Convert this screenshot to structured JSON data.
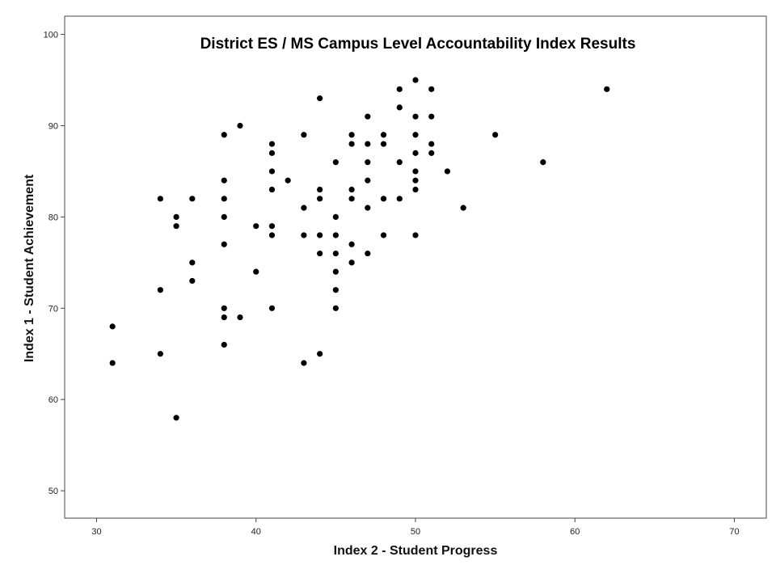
{
  "chart_data": {
    "type": "scatter",
    "title": "District ES / MS  Campus  Level  Accountability  Index  Results",
    "xlabel": "Index 2 - Student Progress",
    "ylabel": "Index 1 - Student Achievement",
    "xlim": [
      28,
      72
    ],
    "ylim": [
      47,
      102
    ],
    "xticks": [
      "30",
      "40",
      "50",
      "60",
      "70"
    ],
    "yticks": [
      "50",
      "60",
      "70",
      "80",
      "90",
      "100"
    ],
    "grid": false,
    "legend": "none",
    "marker_color": "#000000",
    "points": [
      [
        31,
        68
      ],
      [
        31,
        64
      ],
      [
        34,
        82
      ],
      [
        34,
        72
      ],
      [
        34,
        65
      ],
      [
        35,
        80
      ],
      [
        35,
        79
      ],
      [
        35,
        58
      ],
      [
        36,
        82
      ],
      [
        36,
        75
      ],
      [
        36,
        73
      ],
      [
        38,
        89
      ],
      [
        38,
        84
      ],
      [
        38,
        82
      ],
      [
        38,
        80
      ],
      [
        38,
        77
      ],
      [
        38,
        70
      ],
      [
        38,
        69
      ],
      [
        38,
        66
      ],
      [
        39,
        90
      ],
      [
        39,
        69
      ],
      [
        40,
        79
      ],
      [
        40,
        74
      ],
      [
        41,
        88
      ],
      [
        41,
        87
      ],
      [
        41,
        85
      ],
      [
        41,
        83
      ],
      [
        41,
        79
      ],
      [
        41,
        78
      ],
      [
        41,
        70
      ],
      [
        42,
        84
      ],
      [
        43,
        89
      ],
      [
        43,
        81
      ],
      [
        43,
        78
      ],
      [
        43,
        64
      ],
      [
        44,
        93
      ],
      [
        44,
        83
      ],
      [
        44,
        82
      ],
      [
        44,
        78
      ],
      [
        44,
        76
      ],
      [
        44,
        65
      ],
      [
        45,
        86
      ],
      [
        45,
        80
      ],
      [
        45,
        78
      ],
      [
        45,
        76
      ],
      [
        45,
        74
      ],
      [
        45,
        72
      ],
      [
        45,
        70
      ],
      [
        46,
        89
      ],
      [
        46,
        88
      ],
      [
        46,
        83
      ],
      [
        46,
        82
      ],
      [
        46,
        77
      ],
      [
        46,
        75
      ],
      [
        47,
        91
      ],
      [
        47,
        88
      ],
      [
        47,
        86
      ],
      [
        47,
        84
      ],
      [
        47,
        81
      ],
      [
        47,
        76
      ],
      [
        48,
        89
      ],
      [
        48,
        88
      ],
      [
        48,
        82
      ],
      [
        48,
        78
      ],
      [
        49,
        94
      ],
      [
        49,
        92
      ],
      [
        49,
        86
      ],
      [
        49,
        82
      ],
      [
        50,
        95
      ],
      [
        50,
        91
      ],
      [
        50,
        89
      ],
      [
        50,
        87
      ],
      [
        50,
        85
      ],
      [
        50,
        84
      ],
      [
        50,
        83
      ],
      [
        50,
        78
      ],
      [
        51,
        94
      ],
      [
        51,
        91
      ],
      [
        51,
        88
      ],
      [
        51,
        87
      ],
      [
        52,
        85
      ],
      [
        53,
        81
      ],
      [
        55,
        89
      ],
      [
        58,
        86
      ],
      [
        62,
        94
      ]
    ]
  }
}
